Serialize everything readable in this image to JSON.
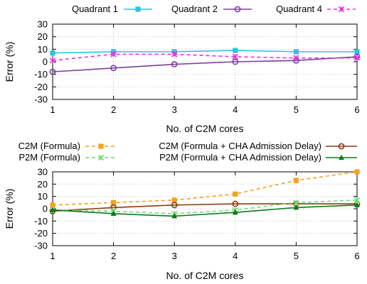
{
  "chart_data": [
    {
      "type": "line",
      "x": [
        1,
        2,
        3,
        4,
        5,
        6
      ],
      "xlabel": "No. of C2M cores",
      "ylabel": "Error (%)",
      "xlim": [
        1,
        6
      ],
      "ylim": [
        -30,
        30
      ],
      "yticks": [
        -30,
        -20,
        -10,
        0,
        10,
        20,
        30
      ],
      "xticks": [
        1,
        2,
        3,
        4,
        5,
        6
      ],
      "grid": true,
      "legend_position": "top",
      "series": [
        {
          "name": "Quadrant 1",
          "color": "#2ec3e6",
          "marker": "square",
          "dash": "solid",
          "values": [
            7,
            8,
            8,
            9,
            8,
            8
          ]
        },
        {
          "name": "Quadrant 2",
          "color": "#7b3fa0",
          "marker": "circle-open",
          "dash": "solid",
          "values": [
            -8,
            -5,
            -2,
            0,
            1,
            4
          ]
        },
        {
          "name": "Quadrant 4",
          "color": "#e62ee6",
          "marker": "x",
          "dash": "dashed",
          "values": [
            1,
            6,
            6,
            4,
            3,
            3
          ]
        }
      ]
    },
    {
      "type": "line",
      "x": [
        1,
        2,
        3,
        4,
        5,
        6
      ],
      "xlabel": "No. of C2M cores",
      "ylabel": "Error (%)",
      "xlim": [
        1,
        6
      ],
      "ylim": [
        -30,
        30
      ],
      "yticks": [
        -30,
        -20,
        -10,
        0,
        10,
        20,
        30
      ],
      "xticks": [
        1,
        2,
        3,
        4,
        5,
        6
      ],
      "grid": true,
      "legend_position": "top",
      "series": [
        {
          "name": "C2M (Formula)",
          "color": "#f5a21b",
          "marker": "square",
          "dash": "dashed",
          "values": [
            3,
            5,
            7,
            12,
            23,
            30
          ]
        },
        {
          "name": "C2M (Formula + CHA Admission Delay)",
          "color": "#8b3a10",
          "marker": "circle-open",
          "dash": "solid",
          "values": [
            -2,
            1,
            3,
            4,
            4,
            4
          ]
        },
        {
          "name": "P2M (Formula)",
          "color": "#6fdc6f",
          "marker": "x",
          "dash": "dashed",
          "values": [
            -1,
            -2,
            -4,
            -1,
            5,
            7
          ]
        },
        {
          "name": "P2M (Formula + CHA Admission Delay)",
          "color": "#0a7a1a",
          "marker": "triangle",
          "dash": "solid",
          "values": [
            -1,
            -4,
            -6,
            -3,
            1,
            3
          ]
        }
      ]
    }
  ]
}
